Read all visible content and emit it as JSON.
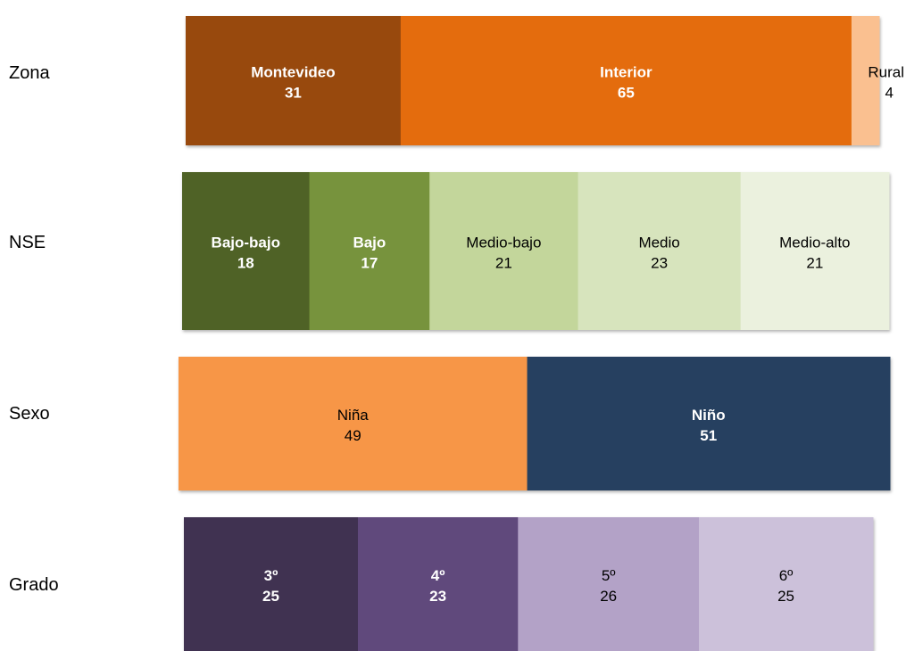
{
  "chart_data": [
    {
      "type": "bar",
      "orientation": "horizontal",
      "stacked": true,
      "category": "Zona",
      "series": [
        {
          "name": "Montevideo",
          "value": 31,
          "color": "#984807",
          "bold": true,
          "text_color": "#ffffff"
        },
        {
          "name": "Interior",
          "value": 65,
          "color": "#e46c0a",
          "bold": true,
          "text_color": "#ffffff"
        },
        {
          "name": "Rural",
          "value": 4,
          "color": "#fac090",
          "bold": false,
          "text_color": "#000000"
        }
      ]
    },
    {
      "type": "bar",
      "orientation": "horizontal",
      "stacked": true,
      "category": "NSE",
      "series": [
        {
          "name": "Bajo-bajo",
          "value": 18,
          "color": "#4f6228",
          "bold": true,
          "text_color": "#ffffff"
        },
        {
          "name": "Bajo",
          "value": 17,
          "color": "#77933c",
          "bold": true,
          "text_color": "#ffffff"
        },
        {
          "name": "Medio-bajo",
          "value": 21,
          "color": "#c3d69b",
          "bold": false,
          "text_color": "#000000"
        },
        {
          "name": "Medio",
          "value": 23,
          "color": "#d7e4bd",
          "bold": false,
          "text_color": "#000000"
        },
        {
          "name": "Medio-alto",
          "value": 21,
          "color": "#ebf1de",
          "bold": false,
          "text_color": "#000000"
        }
      ]
    },
    {
      "type": "bar",
      "orientation": "horizontal",
      "stacked": true,
      "category": "Sexo",
      "series": [
        {
          "name": "Niña",
          "value": 49,
          "color": "#f79646",
          "bold": false,
          "text_color": "#000000"
        },
        {
          "name": "Niño",
          "value": 51,
          "color": "#254061",
          "bold": true,
          "text_color": "#ffffff"
        }
      ]
    },
    {
      "type": "bar",
      "orientation": "horizontal",
      "stacked": true,
      "category": "Grado",
      "series": [
        {
          "name": "3º",
          "value": 25,
          "color": "#403151",
          "bold": true,
          "text_color": "#ffffff"
        },
        {
          "name": "4º",
          "value": 23,
          "color": "#604a7b",
          "bold": true,
          "text_color": "#ffffff"
        },
        {
          "name": "5º",
          "value": 26,
          "color": "#b3a2c7",
          "bold": false,
          "text_color": "#000000"
        },
        {
          "name": "6º",
          "value": 25,
          "color": "#ccc1da",
          "bold": false,
          "text_color": "#000000"
        }
      ]
    }
  ]
}
